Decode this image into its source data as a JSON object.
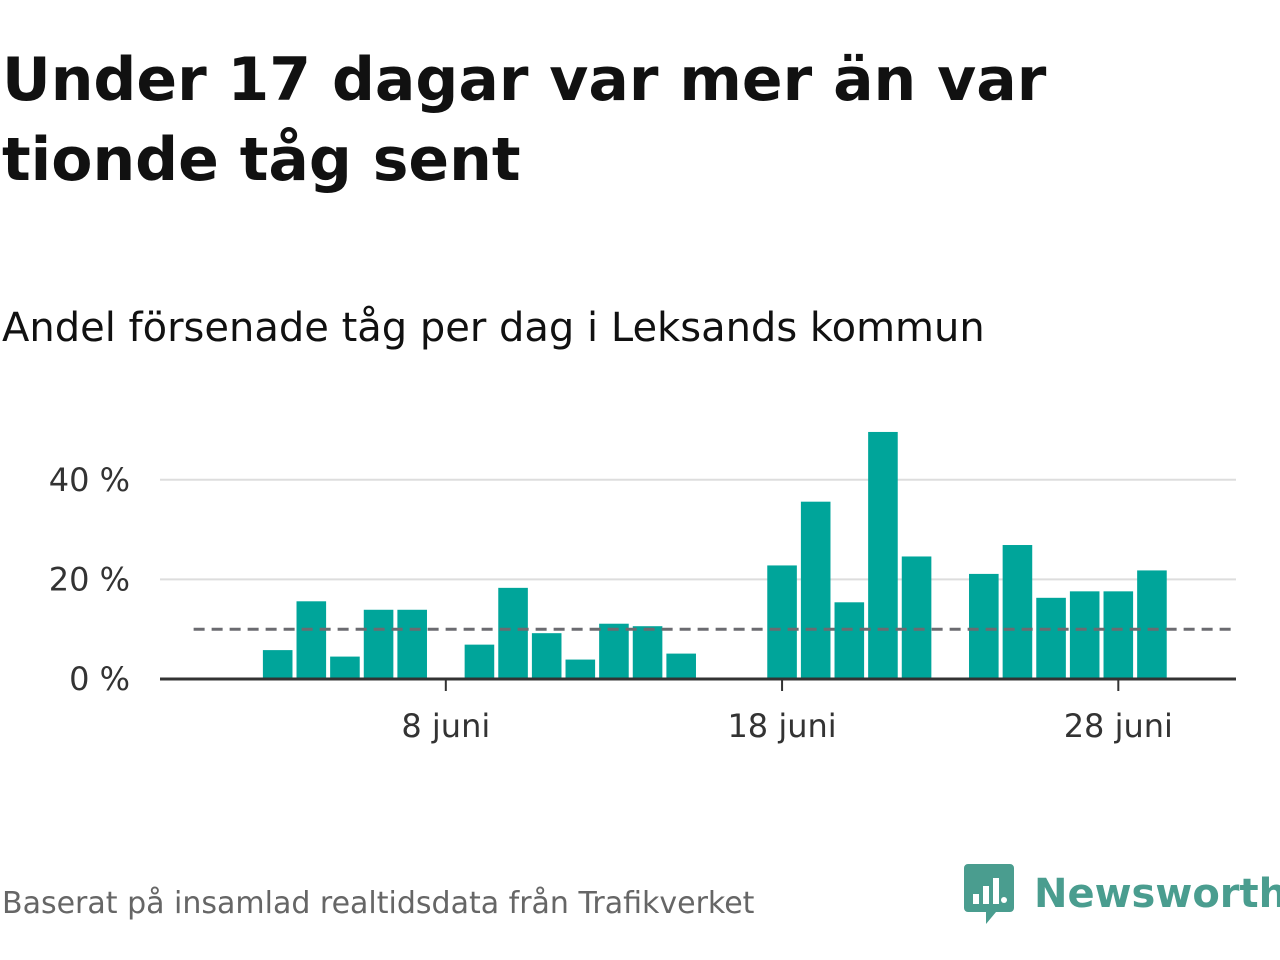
{
  "header": {
    "title": "Under 17 dagar var mer än var tionde tåg sent",
    "subtitle": "Andel försenade tåg per dag i Leksands kommun"
  },
  "footer": {
    "source": "Baserat på insamlad realtidsdata från Trafikverket",
    "brand": "Newsworthy"
  },
  "colors": {
    "bar": "#00a59a",
    "reference_line": "#6b6b70",
    "grid": "#dddddd",
    "axis": "#333333",
    "brand": "#4a9d8f"
  },
  "chart_data": {
    "type": "bar",
    "ylim": [
      0,
      52
    ],
    "y_ticks": [
      {
        "value": 0,
        "label": "0 %"
      },
      {
        "value": 20,
        "label": "20 %"
      },
      {
        "value": 40,
        "label": "40 %"
      }
    ],
    "x_range": [
      -0.5,
      31.5
    ],
    "x_ticks": [
      {
        "day": 8,
        "label": "8 juni"
      },
      {
        "day": 18,
        "label": "18 juni"
      },
      {
        "day": 28,
        "label": "28 juni"
      }
    ],
    "reference_value": 10,
    "reference_range": [
      1,
      31
    ],
    "bars": [
      {
        "day": 3,
        "value": 5.8
      },
      {
        "day": 4,
        "value": 15.6
      },
      {
        "day": 5,
        "value": 4.5
      },
      {
        "day": 6,
        "value": 13.9
      },
      {
        "day": 7,
        "value": 13.9
      },
      {
        "day": 9,
        "value": 6.9
      },
      {
        "day": 10,
        "value": 18.3
      },
      {
        "day": 11,
        "value": 9.2
      },
      {
        "day": 12,
        "value": 3.9
      },
      {
        "day": 13,
        "value": 11.1
      },
      {
        "day": 14,
        "value": 10.6
      },
      {
        "day": 15,
        "value": 5.1
      },
      {
        "day": 18,
        "value": 22.8
      },
      {
        "day": 19,
        "value": 35.6
      },
      {
        "day": 20,
        "value": 15.4
      },
      {
        "day": 21,
        "value": 49.6
      },
      {
        "day": 22,
        "value": 24.6
      },
      {
        "day": 24,
        "value": 21.1
      },
      {
        "day": 25,
        "value": 26.9
      },
      {
        "day": 26,
        "value": 16.3
      },
      {
        "day": 27,
        "value": 17.6
      },
      {
        "day": 28,
        "value": 17.6
      },
      {
        "day": 29,
        "value": 21.8
      }
    ]
  }
}
